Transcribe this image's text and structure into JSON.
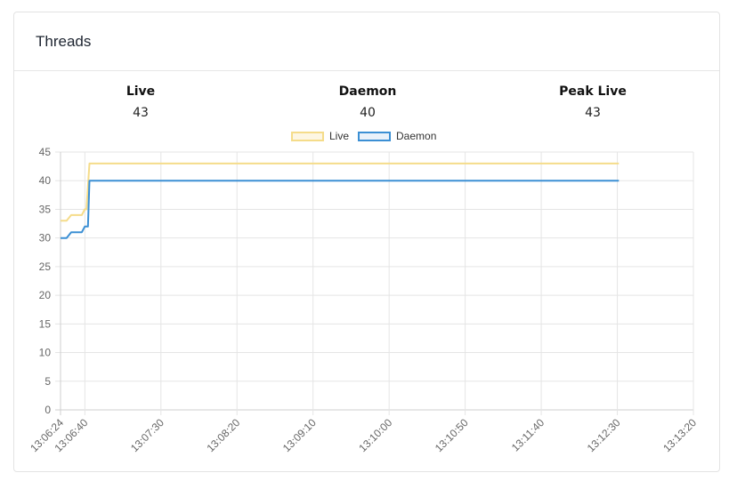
{
  "card": {
    "title": "Threads"
  },
  "stats": [
    {
      "label": "Live",
      "value": "43"
    },
    {
      "label": "Daemon",
      "value": "40"
    },
    {
      "label": "Peak Live",
      "value": "43"
    }
  ],
  "colors": {
    "live": "#f5dc8a",
    "live_fill": "#fdf6e3",
    "daemon": "#3b8fd4",
    "daemon_fill": "#e9f1fa",
    "grid": "#e5e5e5"
  },
  "chart_data": {
    "type": "line",
    "title": "",
    "xlabel": "",
    "ylabel": "",
    "legend": "top",
    "grid": true,
    "ylim": [
      0,
      45
    ],
    "yticks": [
      "0",
      "5",
      "10",
      "15",
      "20",
      "25",
      "30",
      "35",
      "40",
      "45"
    ],
    "xticks": [
      "13:06:24",
      "13:06:40",
      "13:07:30",
      "13:08:20",
      "13:09:10",
      "13:10:00",
      "13:10:50",
      "13:11:40",
      "13:12:30",
      "13:13:20"
    ],
    "x_unit": "time (HH:MM:SS)",
    "series": [
      {
        "name": "Live",
        "points": [
          [
            "13:06:24",
            33
          ],
          [
            "13:06:28",
            33
          ],
          [
            "13:06:31",
            34
          ],
          [
            "13:06:38",
            34
          ],
          [
            "13:06:40",
            35
          ],
          [
            "13:06:41",
            35
          ],
          [
            "13:06:43",
            43
          ],
          [
            "13:12:31",
            43
          ]
        ]
      },
      {
        "name": "Daemon",
        "points": [
          [
            "13:06:24",
            30
          ],
          [
            "13:06:28",
            30
          ],
          [
            "13:06:31",
            31
          ],
          [
            "13:06:38",
            31
          ],
          [
            "13:06:40",
            32
          ],
          [
            "13:06:42",
            32
          ],
          [
            "13:06:43",
            40
          ],
          [
            "13:12:31",
            40
          ]
        ]
      }
    ]
  }
}
